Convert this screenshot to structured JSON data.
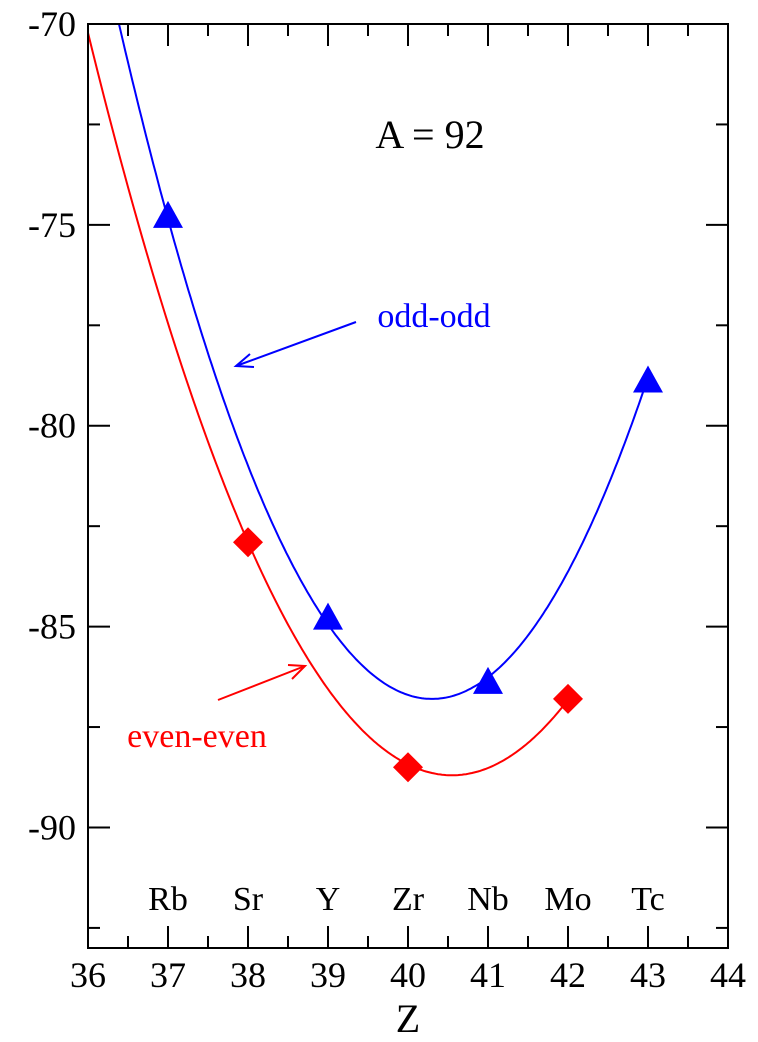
{
  "chart_data": {
    "type": "line",
    "title": "",
    "xlabel": "Z",
    "ylabel": "",
    "xlim": [
      36,
      44
    ],
    "ylim": [
      -93,
      -70
    ],
    "x_ticks": [
      36,
      37,
      38,
      39,
      40,
      41,
      42,
      43,
      44
    ],
    "y_ticks": [
      -70,
      -75,
      -80,
      -85,
      -90
    ],
    "x_tick_labels": [
      "36",
      "37",
      "38",
      "39",
      "40",
      "41",
      "42",
      "43",
      "44"
    ],
    "y_tick_labels": [
      "-70",
      "-75",
      "-80",
      "-85",
      "-90"
    ],
    "grid": false,
    "annotation": "A = 92",
    "element_labels": [
      {
        "z": 37,
        "label": "Rb"
      },
      {
        "z": 38,
        "label": "Sr"
      },
      {
        "z": 39,
        "label": "Y"
      },
      {
        "z": 40,
        "label": "Zr"
      },
      {
        "z": 41,
        "label": "Nb"
      },
      {
        "z": 42,
        "label": "Mo"
      },
      {
        "z": 43,
        "label": "Tc"
      }
    ],
    "series": [
      {
        "name": "odd-odd",
        "color": "#0000ff",
        "marker": "triangle",
        "points": [
          {
            "x": 37,
            "y": -74.8
          },
          {
            "x": 39,
            "y": -84.8
          },
          {
            "x": 41,
            "y": -86.4
          },
          {
            "x": 43,
            "y": -78.9
          }
        ],
        "curve_vertex": {
          "x": 40.3,
          "y": -86.8
        }
      },
      {
        "name": "even-even",
        "color": "#ff0000",
        "marker": "diamond",
        "points": [
          {
            "x": 38,
            "y": -82.9
          },
          {
            "x": 40,
            "y": -88.5
          },
          {
            "x": 42,
            "y": -86.8
          }
        ],
        "curve_vertex": {
          "x": 40.55,
          "y": -88.7
        }
      }
    ]
  }
}
